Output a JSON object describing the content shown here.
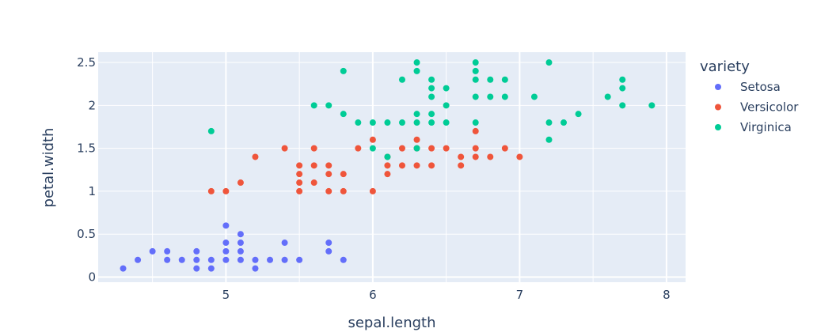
{
  "chart_data": {
    "type": "scatter",
    "xlabel": "sepal.length",
    "ylabel": "petal.width",
    "xlim": [
      4.13,
      8.13
    ],
    "ylim": [
      -0.06,
      2.62
    ],
    "xticks": [
      5,
      6,
      7,
      8
    ],
    "yticks": [
      0,
      0.5,
      1,
      1.5,
      2,
      2.5
    ],
    "grid": true,
    "legend": {
      "title": "variety",
      "placement": "right"
    },
    "series": [
      {
        "name": "Setosa",
        "color": "#636efa",
        "points": [
          [
            4.3,
            0.1
          ],
          [
            4.4,
            0.2
          ],
          [
            4.5,
            0.3
          ],
          [
            4.6,
            0.2
          ],
          [
            4.6,
            0.3
          ],
          [
            4.7,
            0.2
          ],
          [
            4.8,
            0.1
          ],
          [
            4.8,
            0.2
          ],
          [
            4.8,
            0.3
          ],
          [
            4.9,
            0.1
          ],
          [
            4.9,
            0.2
          ],
          [
            5.0,
            0.2
          ],
          [
            5.0,
            0.3
          ],
          [
            5.0,
            0.4
          ],
          [
            5.0,
            0.6
          ],
          [
            5.1,
            0.2
          ],
          [
            5.1,
            0.3
          ],
          [
            5.1,
            0.4
          ],
          [
            5.1,
            0.5
          ],
          [
            5.2,
            0.1
          ],
          [
            5.2,
            0.2
          ],
          [
            5.3,
            0.2
          ],
          [
            5.4,
            0.2
          ],
          [
            5.4,
            0.4
          ],
          [
            5.5,
            0.2
          ],
          [
            5.7,
            0.3
          ],
          [
            5.7,
            0.4
          ],
          [
            5.8,
            0.2
          ]
        ]
      },
      {
        "name": "Versicolor",
        "color": "#ef553b",
        "points": [
          [
            4.9,
            1.0
          ],
          [
            5.0,
            1.0
          ],
          [
            5.1,
            1.1
          ],
          [
            5.2,
            1.4
          ],
          [
            5.4,
            1.5
          ],
          [
            5.5,
            1.0
          ],
          [
            5.5,
            1.1
          ],
          [
            5.5,
            1.2
          ],
          [
            5.5,
            1.3
          ],
          [
            5.6,
            1.1
          ],
          [
            5.6,
            1.3
          ],
          [
            5.6,
            1.5
          ],
          [
            5.7,
            1.0
          ],
          [
            5.7,
            1.2
          ],
          [
            5.7,
            1.3
          ],
          [
            5.8,
            1.0
          ],
          [
            5.8,
            1.2
          ],
          [
            5.9,
            1.5
          ],
          [
            6.0,
            1.0
          ],
          [
            6.0,
            1.6
          ],
          [
            6.1,
            1.2
          ],
          [
            6.1,
            1.3
          ],
          [
            6.1,
            1.4
          ],
          [
            6.2,
            1.3
          ],
          [
            6.2,
            1.5
          ],
          [
            6.3,
            1.3
          ],
          [
            6.3,
            1.5
          ],
          [
            6.3,
            1.6
          ],
          [
            6.4,
            1.3
          ],
          [
            6.4,
            1.5
          ],
          [
            6.5,
            1.5
          ],
          [
            6.6,
            1.3
          ],
          [
            6.6,
            1.4
          ],
          [
            6.7,
            1.4
          ],
          [
            6.7,
            1.5
          ],
          [
            6.7,
            1.7
          ],
          [
            6.8,
            1.4
          ],
          [
            6.9,
            1.5
          ],
          [
            7.0,
            1.4
          ]
        ]
      },
      {
        "name": "Virginica",
        "color": "#00cc96",
        "points": [
          [
            4.9,
            1.7
          ],
          [
            5.6,
            2.0
          ],
          [
            5.7,
            2.0
          ],
          [
            5.8,
            1.9
          ],
          [
            5.8,
            2.4
          ],
          [
            5.9,
            1.8
          ],
          [
            6.0,
            1.5
          ],
          [
            6.0,
            1.8
          ],
          [
            6.1,
            1.4
          ],
          [
            6.1,
            1.8
          ],
          [
            6.2,
            1.8
          ],
          [
            6.2,
            2.3
          ],
          [
            6.3,
            1.5
          ],
          [
            6.3,
            1.8
          ],
          [
            6.3,
            1.9
          ],
          [
            6.3,
            2.4
          ],
          [
            6.3,
            2.5
          ],
          [
            6.4,
            1.8
          ],
          [
            6.4,
            1.9
          ],
          [
            6.4,
            2.1
          ],
          [
            6.4,
            2.2
          ],
          [
            6.4,
            2.3
          ],
          [
            6.5,
            1.8
          ],
          [
            6.5,
            2.0
          ],
          [
            6.5,
            2.2
          ],
          [
            6.7,
            1.8
          ],
          [
            6.7,
            2.1
          ],
          [
            6.7,
            2.3
          ],
          [
            6.7,
            2.4
          ],
          [
            6.7,
            2.5
          ],
          [
            6.8,
            2.1
          ],
          [
            6.8,
            2.3
          ],
          [
            6.9,
            2.1
          ],
          [
            6.9,
            2.3
          ],
          [
            7.1,
            2.1
          ],
          [
            7.2,
            1.6
          ],
          [
            7.2,
            1.8
          ],
          [
            7.2,
            2.5
          ],
          [
            7.3,
            1.8
          ],
          [
            7.4,
            1.9
          ],
          [
            7.6,
            2.1
          ],
          [
            7.7,
            2.0
          ],
          [
            7.7,
            2.2
          ],
          [
            7.7,
            2.3
          ],
          [
            7.9,
            2.0
          ]
        ]
      }
    ]
  }
}
